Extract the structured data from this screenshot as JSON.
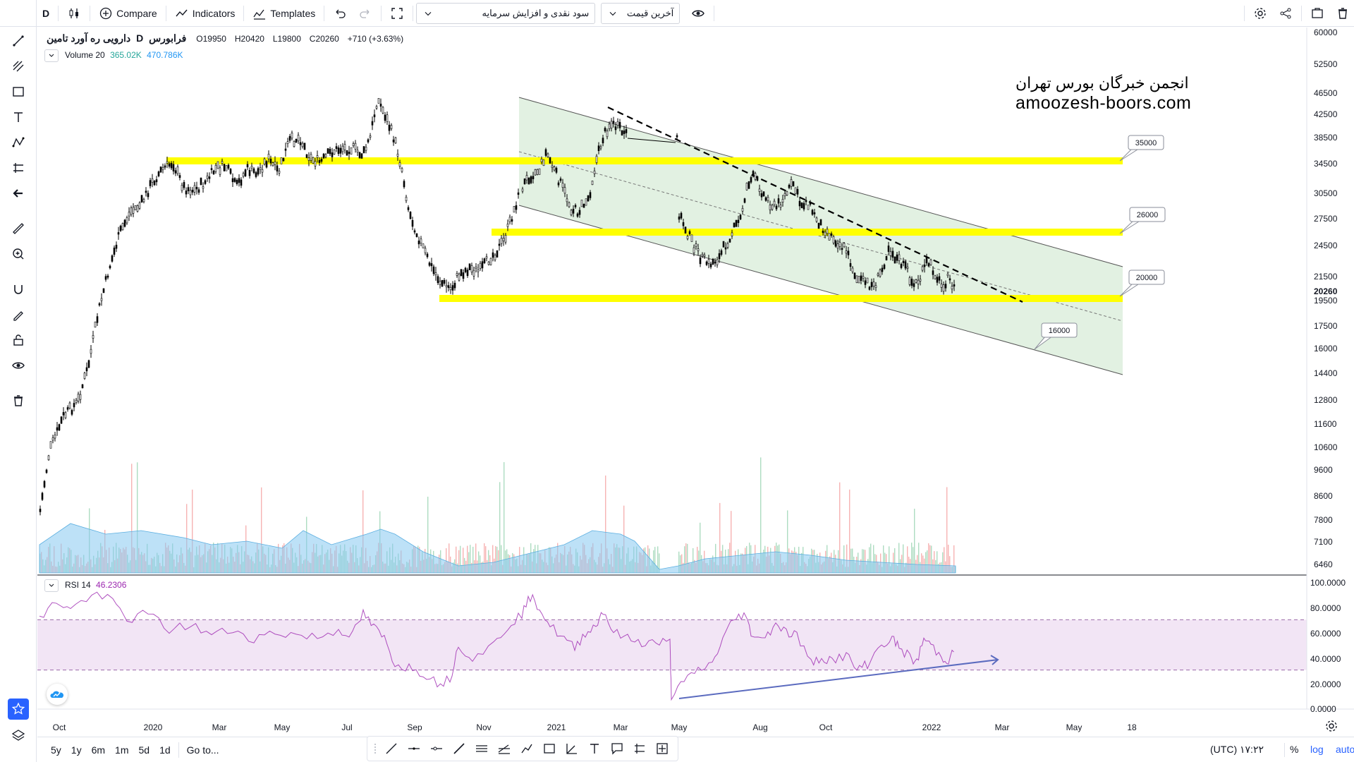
{
  "toolbar": {
    "interval": "D",
    "compare_label": "Compare",
    "indicators_label": "Indicators",
    "templates_label": "Templates",
    "dropdown1_value": "سود نقدی و افزایش سرمایه",
    "dropdown2_value": "آخرین قیمت"
  },
  "legend": {
    "symbol_name": "دارویی ره آورد تامین",
    "interval": "D",
    "exchange": "فرابورس",
    "open_label": "O",
    "open": "19950",
    "high_label": "H",
    "high": "20420",
    "low_label": "L",
    "low": "19800",
    "close_label": "C",
    "close": "20260",
    "change": "+710 (+3.63%)",
    "volume_label": "Volume 20",
    "volume_v1": "365.02K",
    "volume_v2": "470.786K",
    "rsi_label": "RSI 14",
    "rsi_value": "46.2306"
  },
  "watermark": {
    "line1": "انجمن خبرگان بورس تهران",
    "line2": "amoozesh-boors.com"
  },
  "price_axis": {
    "ticks": [
      "60000",
      "52500",
      "46500",
      "42500",
      "38500",
      "34500",
      "30500",
      "27500",
      "24500",
      "21500",
      "20260",
      "19500",
      "17500",
      "16000",
      "14400",
      "12800",
      "11600",
      "10600",
      "9600",
      "8600",
      "7800",
      "7100",
      "6460"
    ],
    "current_price": "20260"
  },
  "rsi_axis": {
    "ticks": [
      "100.0000",
      "80.0000",
      "60.0000",
      "40.0000",
      "20.0000",
      "0.0000"
    ]
  },
  "time_axis": {
    "ticks": [
      "Oct",
      "2020",
      "Mar",
      "May",
      "Jul",
      "Sep",
      "Nov",
      "2021",
      "Mar",
      "May",
      "Aug",
      "Oct",
      "2022",
      "Mar",
      "May",
      "18"
    ]
  },
  "levels": {
    "l35000": "35000",
    "l26000": "26000",
    "l20000": "20000",
    "l16000": "16000"
  },
  "bottom": {
    "ranges": [
      "5y",
      "1y",
      "6m",
      "1m",
      "5d",
      "1d"
    ],
    "goto": "Go to...",
    "clock": "۱۷:۲۲ (UTC)",
    "percent": "%",
    "log": "log",
    "auto": "auto"
  },
  "colors": {
    "highlight": "#ffff00",
    "channel_fill": "#d8ecd8",
    "rsi_line": "#9c27b0",
    "rsi_band": "#f2e5f5",
    "volume_ma": "#86c8f0",
    "accent": "#2962ff"
  }
}
